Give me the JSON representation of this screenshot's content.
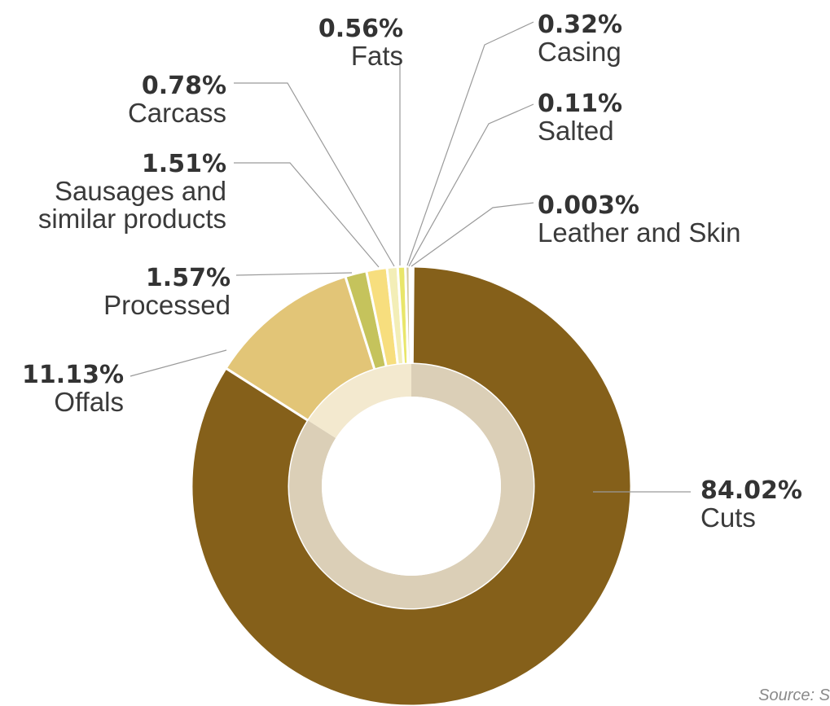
{
  "chart_data": {
    "type": "pie",
    "style": "donut",
    "direction": "clockwise",
    "start": "top",
    "slices": [
      {
        "label": "Cuts",
        "value": 84.02,
        "value_label": "84.02%",
        "color": "#85601A"
      },
      {
        "label": "Offals",
        "value": 11.13,
        "value_label": "11.13%",
        "color": "#E2C577"
      },
      {
        "label": "Processed",
        "value": 1.57,
        "value_label": "1.57%",
        "color": "#C5C35C"
      },
      {
        "label": "Sausages and similar products",
        "lines": [
          "Sausages and",
          "similar products"
        ],
        "value": 1.51,
        "value_label": "1.51%",
        "color": "#F7DE7E"
      },
      {
        "label": "Carcass",
        "value": 0.78,
        "value_label": "0.78%",
        "color": "#F3EEB7"
      },
      {
        "label": "Fats",
        "value": 0.56,
        "value_label": "0.56%",
        "color": "#E9E66A"
      },
      {
        "label": "Casing",
        "value": 0.32,
        "value_label": "0.32%",
        "color": "#D3C89E"
      },
      {
        "label": "Salted",
        "value": 0.11,
        "value_label": "0.11%",
        "color": "#B5B5A5"
      },
      {
        "label": "Leather and Skin",
        "value": 0.003,
        "value_label": "0.003%",
        "color": "#CFCFCF"
      }
    ],
    "inner_ring_color": "#DBCFB7",
    "inner_ring_highlight_color": "#F3E9CF",
    "source": "Source: S"
  }
}
